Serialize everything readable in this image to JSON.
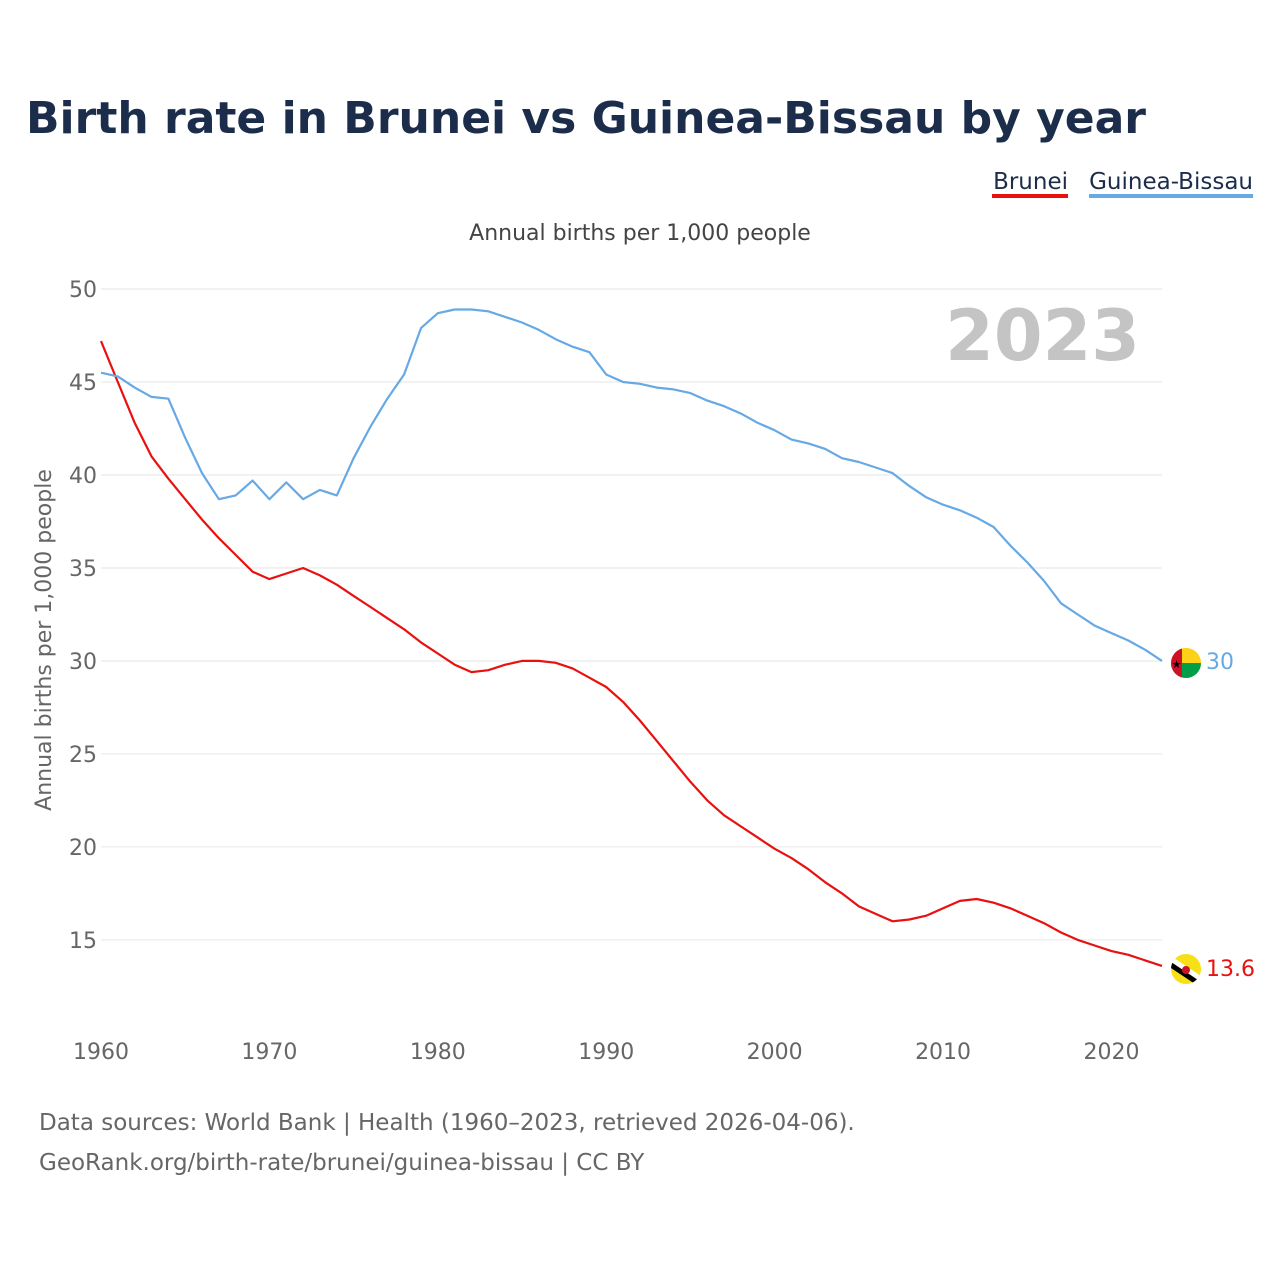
{
  "chart_data": {
    "type": "line",
    "title": "Birth rate in Brunei vs Guinea-Bissau by year",
    "subtitle": "Annual births per 1,000 people",
    "ylabel": "Annual births per 1,000 people",
    "xlabel": "",
    "xlim": [
      1960,
      2023
    ],
    "ylim": [
      11.5,
      50
    ],
    "yticks": [
      15,
      20,
      25,
      30,
      35,
      40,
      45,
      50
    ],
    "xticks": [
      1960,
      1970,
      1980,
      1990,
      2000,
      2010,
      2020
    ],
    "year_stamp": "2023",
    "legend": [
      "Brunei",
      "Guinea-Bissau"
    ],
    "legend_position": "top-right",
    "x": [
      1960,
      1961,
      1962,
      1963,
      1964,
      1965,
      1966,
      1967,
      1968,
      1969,
      1970,
      1971,
      1972,
      1973,
      1974,
      1975,
      1976,
      1977,
      1978,
      1979,
      1980,
      1981,
      1982,
      1983,
      1984,
      1985,
      1986,
      1987,
      1988,
      1989,
      1990,
      1991,
      1992,
      1993,
      1994,
      1995,
      1996,
      1997,
      1998,
      1999,
      2000,
      2001,
      2002,
      2003,
      2004,
      2005,
      2006,
      2007,
      2008,
      2009,
      2010,
      2011,
      2012,
      2013,
      2014,
      2015,
      2016,
      2017,
      2018,
      2019,
      2020,
      2021,
      2022,
      2023
    ],
    "series": [
      {
        "name": "Brunei",
        "color": "#e8110f",
        "end_label": "13.6",
        "values": [
          47.2,
          45.0,
          42.8,
          41.0,
          39.8,
          38.7,
          37.6,
          36.6,
          35.7,
          34.8,
          34.4,
          34.7,
          35.0,
          34.6,
          34.1,
          33.5,
          32.9,
          32.3,
          31.7,
          31.0,
          30.4,
          29.8,
          29.4,
          29.5,
          29.8,
          30.0,
          30.0,
          29.9,
          29.6,
          29.1,
          28.6,
          27.8,
          26.8,
          25.7,
          24.6,
          23.5,
          22.5,
          21.7,
          21.1,
          20.5,
          19.9,
          19.4,
          18.8,
          18.1,
          17.5,
          16.8,
          16.4,
          16.0,
          16.1,
          16.3,
          16.7,
          17.1,
          17.2,
          17.0,
          16.7,
          16.3,
          15.9,
          15.4,
          15.0,
          14.7,
          14.4,
          14.2,
          13.9,
          13.6
        ]
      },
      {
        "name": "Guinea-Bissau",
        "color": "#66a9e4",
        "end_label": "30",
        "values": [
          45.5,
          45.3,
          44.7,
          44.2,
          44.1,
          42.0,
          40.1,
          38.7,
          38.9,
          39.7,
          38.7,
          39.6,
          38.7,
          39.2,
          38.9,
          40.9,
          42.6,
          44.1,
          45.4,
          47.9,
          48.7,
          48.9,
          48.9,
          48.8,
          48.5,
          48.2,
          47.8,
          47.3,
          46.9,
          46.6,
          45.4,
          45.0,
          44.9,
          44.7,
          44.6,
          44.4,
          44.0,
          43.7,
          43.3,
          42.8,
          42.4,
          41.9,
          41.7,
          41.4,
          40.9,
          40.7,
          40.4,
          40.1,
          39.4,
          38.8,
          38.4,
          38.1,
          37.7,
          37.2,
          36.2,
          35.3,
          34.3,
          33.1,
          32.5,
          31.9,
          31.5,
          31.1,
          30.6,
          30.0
        ]
      }
    ]
  },
  "source": {
    "line1": "Data sources: World Bank | Health (1960–2023, retrieved 2026-04-06).",
    "line2": "GeoRank.org/birth-rate/brunei/guinea-bissau | CC BY"
  },
  "flags": {
    "brunei": "brunei-flag-icon",
    "guinea_bissau": "guinea-bissau-flag-icon"
  }
}
